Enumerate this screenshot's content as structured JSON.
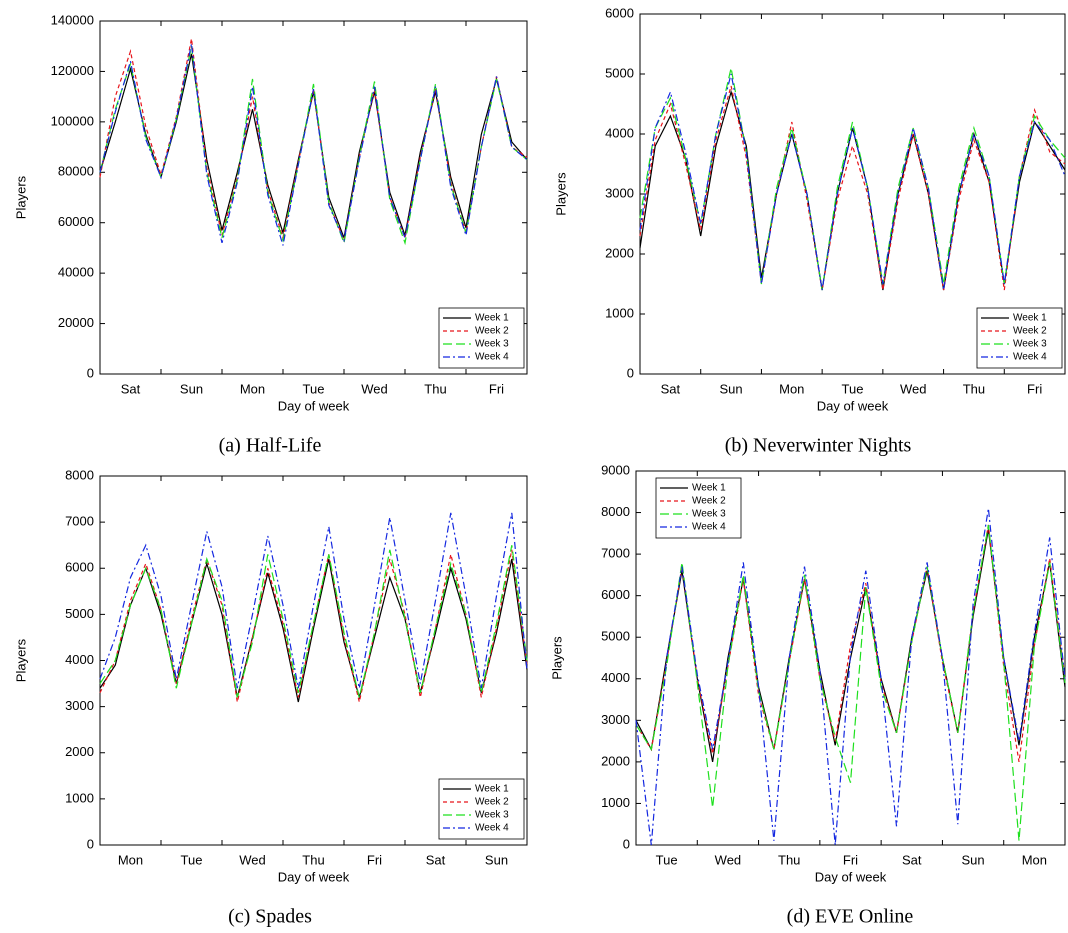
{
  "chart_data": [
    {
      "type": "line",
      "caption": "(a) Half-Life",
      "xlabel": "Day of week",
      "ylabel": "Players",
      "x": [
        0,
        0.25,
        0.5,
        0.75,
        1,
        1.25,
        1.5,
        1.75,
        2,
        2.25,
        2.5,
        2.75,
        3,
        3.25,
        3.5,
        3.75,
        4,
        4.25,
        4.5,
        4.75,
        5,
        5.25,
        5.5,
        5.75,
        6,
        6.25,
        6.5,
        6.75,
        7
      ],
      "xlim": [
        0,
        7
      ],
      "xticks": [
        {
          "value": 0.5,
          "label": "Sat"
        },
        {
          "value": 1.5,
          "label": "Sun"
        },
        {
          "value": 2.5,
          "label": "Mon"
        },
        {
          "value": 3.5,
          "label": "Tue"
        },
        {
          "value": 4.5,
          "label": "Wed"
        },
        {
          "value": 5.5,
          "label": "Thu"
        },
        {
          "value": 6.5,
          "label": "Fri"
        }
      ],
      "xminorticks": [
        1,
        2,
        3,
        4,
        5,
        6
      ],
      "ylim": [
        0,
        140000
      ],
      "yticks": [
        0,
        20000,
        40000,
        60000,
        80000,
        100000,
        120000,
        140000
      ],
      "legend": "lower right",
      "series": [
        {
          "name": "Week 1",
          "color": "#000000",
          "dash": "solid",
          "values": [
            80000,
            100000,
            121000,
            95000,
            78000,
            100000,
            127000,
            85000,
            57000,
            80000,
            105000,
            75000,
            56000,
            85000,
            112000,
            70000,
            54000,
            88000,
            112000,
            72000,
            55000,
            88000,
            112000,
            78000,
            58000,
            95000,
            117000,
            92000,
            85000
          ]
        },
        {
          "name": "Week 2",
          "color": "#e8141a",
          "dash": "dashed",
          "values": [
            78000,
            110000,
            128000,
            98000,
            79000,
            102000,
            133000,
            82000,
            55000,
            78000,
            110000,
            73000,
            54000,
            84000,
            113000,
            68000,
            53000,
            86000,
            113000,
            70000,
            54000,
            86000,
            113000,
            76000,
            56000,
            90000,
            118000,
            90000,
            86000
          ]
        },
        {
          "name": "Week 3",
          "color": "#1ee01e",
          "dash": "longdash",
          "values": [
            80000,
            105000,
            123000,
            94000,
            78000,
            101000,
            130000,
            80000,
            54000,
            77000,
            117000,
            72000,
            53000,
            83000,
            115000,
            68000,
            52000,
            86000,
            116000,
            69000,
            52000,
            85000,
            115000,
            75000,
            56000,
            90000,
            117000,
            90000,
            85000
          ]
        },
        {
          "name": "Week 4",
          "color": "#1428e0",
          "dash": "dashdot",
          "values": [
            80000,
            104000,
            124000,
            93000,
            78000,
            101000,
            131000,
            79000,
            52000,
            76000,
            114000,
            71000,
            51000,
            83000,
            113000,
            67000,
            53000,
            85000,
            114000,
            70000,
            54000,
            85000,
            114000,
            74000,
            55000,
            90000,
            118000,
            90000,
            85000
          ]
        }
      ]
    },
    {
      "type": "line",
      "caption": "(b) Neverwinter Nights",
      "xlabel": "Day of week",
      "ylabel": "Players",
      "x": [
        0,
        0.25,
        0.5,
        0.75,
        1,
        1.25,
        1.5,
        1.75,
        2,
        2.25,
        2.5,
        2.75,
        3,
        3.25,
        3.5,
        3.75,
        4,
        4.25,
        4.5,
        4.75,
        5,
        5.25,
        5.5,
        5.75,
        6,
        6.25,
        6.5,
        6.75,
        7
      ],
      "xlim": [
        0,
        7
      ],
      "xticks": [
        {
          "value": 0.5,
          "label": "Sat"
        },
        {
          "value": 1.5,
          "label": "Sun"
        },
        {
          "value": 2.5,
          "label": "Mon"
        },
        {
          "value": 3.5,
          "label": "Tue"
        },
        {
          "value": 4.5,
          "label": "Wed"
        },
        {
          "value": 5.5,
          "label": "Thu"
        },
        {
          "value": 6.5,
          "label": "Fri"
        }
      ],
      "xminorticks": [
        1,
        2,
        3,
        4,
        5,
        6
      ],
      "ylim": [
        0,
        6000
      ],
      "yticks": [
        0,
        1000,
        2000,
        3000,
        4000,
        5000,
        6000
      ],
      "legend": "lower right",
      "series": [
        {
          "name": "Week 1",
          "color": "#000000",
          "dash": "solid",
          "values": [
            2100,
            3800,
            4300,
            3600,
            2300,
            3800,
            4700,
            3800,
            1600,
            3000,
            4000,
            3000,
            1400,
            3000,
            4100,
            3100,
            1400,
            3000,
            4000,
            3000,
            1400,
            3000,
            4000,
            3200,
            1500,
            3200,
            4200,
            3800,
            3400
          ]
        },
        {
          "name": "Week 2",
          "color": "#e8141a",
          "dash": "dashed",
          "values": [
            2300,
            3900,
            4500,
            3500,
            2400,
            3900,
            4800,
            3600,
            1500,
            3000,
            4200,
            2900,
            1400,
            2900,
            3800,
            3000,
            1400,
            2900,
            4000,
            3000,
            1400,
            2900,
            3900,
            3200,
            1400,
            3300,
            4400,
            3700,
            3500
          ]
        },
        {
          "name": "Week 3",
          "color": "#1ee01e",
          "dash": "longdash",
          "values": [
            2600,
            4100,
            4600,
            3600,
            2500,
            4000,
            5100,
            3700,
            1500,
            3100,
            4100,
            3000,
            1400,
            3100,
            4200,
            3100,
            1500,
            3100,
            4100,
            3100,
            1500,
            3100,
            4100,
            3300,
            1500,
            3300,
            4300,
            3900,
            3600
          ]
        },
        {
          "name": "Week 4",
          "color": "#1428e0",
          "dash": "dashdot",
          "values": [
            2400,
            4100,
            4700,
            3700,
            2500,
            4000,
            5000,
            3700,
            1500,
            3000,
            4000,
            3000,
            1400,
            3000,
            4100,
            3100,
            1500,
            3000,
            4100,
            3100,
            1400,
            3000,
            4000,
            3300,
            1500,
            3300,
            4200,
            3900,
            3300
          ]
        }
      ]
    },
    {
      "type": "line",
      "caption": "(c) Spades",
      "xlabel": "Day of week",
      "ylabel": "Players",
      "x": [
        0,
        0.25,
        0.5,
        0.75,
        1,
        1.25,
        1.5,
        1.75,
        2,
        2.25,
        2.5,
        2.75,
        3,
        3.25,
        3.5,
        3.75,
        4,
        4.25,
        4.5,
        4.75,
        5,
        5.25,
        5.5,
        5.75,
        6,
        6.25,
        6.5,
        6.75,
        7
      ],
      "xlim": [
        0,
        7
      ],
      "xticks": [
        {
          "value": 0.5,
          "label": "Mon"
        },
        {
          "value": 1.5,
          "label": "Tue"
        },
        {
          "value": 2.5,
          "label": "Wed"
        },
        {
          "value": 3.5,
          "label": "Thu"
        },
        {
          "value": 4.5,
          "label": "Fri"
        },
        {
          "value": 5.5,
          "label": "Sat"
        },
        {
          "value": 6.5,
          "label": "Sun"
        }
      ],
      "xminorticks": [
        1,
        2,
        3,
        4,
        5,
        6
      ],
      "ylim": [
        0,
        8000
      ],
      "yticks": [
        0,
        1000,
        2000,
        3000,
        4000,
        5000,
        6000,
        7000,
        8000
      ],
      "legend": "lower right",
      "series": [
        {
          "name": "Week 1",
          "color": "#000000",
          "dash": "solid",
          "values": [
            3400,
            3900,
            5200,
            6000,
            5000,
            3500,
            4800,
            6100,
            5000,
            3200,
            4500,
            5900,
            4700,
            3100,
            4700,
            6200,
            4400,
            3200,
            4500,
            5800,
            4900,
            3300,
            4600,
            6000,
            4900,
            3300,
            4600,
            6200,
            3800
          ]
        },
        {
          "name": "Week 2",
          "color": "#e8141a",
          "dash": "dashed",
          "values": [
            3300,
            4000,
            5300,
            6100,
            5100,
            3500,
            4900,
            6200,
            5200,
            3100,
            4500,
            6000,
            4800,
            3200,
            4800,
            6300,
            4500,
            3100,
            4600,
            6200,
            5000,
            3200,
            4700,
            6300,
            5000,
            3200,
            4700,
            6400,
            3900
          ]
        },
        {
          "name": "Week 3",
          "color": "#1ee01e",
          "dash": "longdash",
          "values": [
            3500,
            4000,
            5200,
            6000,
            5100,
            3400,
            4800,
            6200,
            5300,
            3200,
            4400,
            6300,
            4900,
            3300,
            4800,
            6300,
            4600,
            3200,
            4600,
            6400,
            4900,
            3300,
            4700,
            6100,
            5000,
            3300,
            4800,
            6500,
            4000
          ]
        },
        {
          "name": "Week 4",
          "color": "#1428e0",
          "dash": "dashdot",
          "values": [
            3600,
            4500,
            5800,
            6500,
            5400,
            3600,
            5200,
            6800,
            5600,
            3400,
            5000,
            6700,
            5200,
            3400,
            5200,
            6900,
            4900,
            3400,
            5200,
            7100,
            5300,
            3500,
            5300,
            7200,
            5400,
            3400,
            5400,
            7200,
            3800
          ]
        }
      ]
    },
    {
      "type": "line",
      "caption": "(d) EVE Online",
      "xlabel": "Day of week",
      "ylabel": "Players",
      "x": [
        0,
        0.25,
        0.5,
        0.75,
        1,
        1.25,
        1.5,
        1.75,
        2,
        2.25,
        2.5,
        2.75,
        3,
        3.25,
        3.5,
        3.75,
        4,
        4.25,
        4.5,
        4.75,
        5,
        5.25,
        5.5,
        5.75,
        6,
        6.25,
        6.5,
        6.75,
        7
      ],
      "xlim": [
        0,
        7
      ],
      "xticks": [
        {
          "value": 0.5,
          "label": "Tue"
        },
        {
          "value": 1.5,
          "label": "Wed"
        },
        {
          "value": 2.5,
          "label": "Thu"
        },
        {
          "value": 3.5,
          "label": "Fri"
        },
        {
          "value": 4.5,
          "label": "Sat"
        },
        {
          "value": 5.5,
          "label": "Sun"
        },
        {
          "value": 6.5,
          "label": "Mon"
        }
      ],
      "xminorticks": [
        1,
        2,
        3,
        4,
        5,
        6
      ],
      "ylim": [
        0,
        9000
      ],
      "yticks": [
        0,
        1000,
        2000,
        3000,
        4000,
        5000,
        6000,
        7000,
        8000,
        9000
      ],
      "legend": "upper left",
      "series": [
        {
          "name": "Week 1",
          "color": "#000000",
          "dash": "solid",
          "values": [
            3000,
            2300,
            4500,
            6600,
            4000,
            2000,
            4500,
            6400,
            3800,
            2300,
            4500,
            6400,
            4200,
            2400,
            4500,
            6200,
            4000,
            2700,
            5000,
            6600,
            4500,
            2700,
            5500,
            7600,
            4500,
            2400,
            5000,
            6800,
            3800
          ]
        },
        {
          "name": "Week 2",
          "color": "#e8141a",
          "dash": "dashed",
          "values": [
            2900,
            2300,
            4400,
            6700,
            4000,
            2200,
            4300,
            6400,
            3600,
            2300,
            4400,
            6400,
            4000,
            2500,
            4800,
            6300,
            3900,
            2700,
            4900,
            6700,
            4400,
            2700,
            5600,
            7700,
            4300,
            2000,
            4800,
            6900,
            4000
          ]
        },
        {
          "name": "Week 3",
          "color": "#1ee01e",
          "dash": "longdash",
          "values": [
            2900,
            2300,
            4300,
            6800,
            3900,
            900,
            4300,
            6500,
            3700,
            2300,
            4400,
            6500,
            4000,
            2600,
            1500,
            6200,
            3800,
            2700,
            4900,
            6700,
            4500,
            2700,
            5600,
            7700,
            4400,
            100,
            4800,
            6800,
            3900
          ]
        },
        {
          "name": "Week 4",
          "color": "#1428e0",
          "dash": "dashdot",
          "values": [
            3000,
            0,
            4500,
            6700,
            4100,
            2300,
            4400,
            6800,
            3800,
            100,
            4500,
            6700,
            4200,
            0,
            4600,
            6600,
            4000,
            450,
            5000,
            6800,
            4500,
            500,
            5800,
            8100,
            4500,
            2500,
            5100,
            7400,
            4000
          ]
        }
      ]
    }
  ]
}
